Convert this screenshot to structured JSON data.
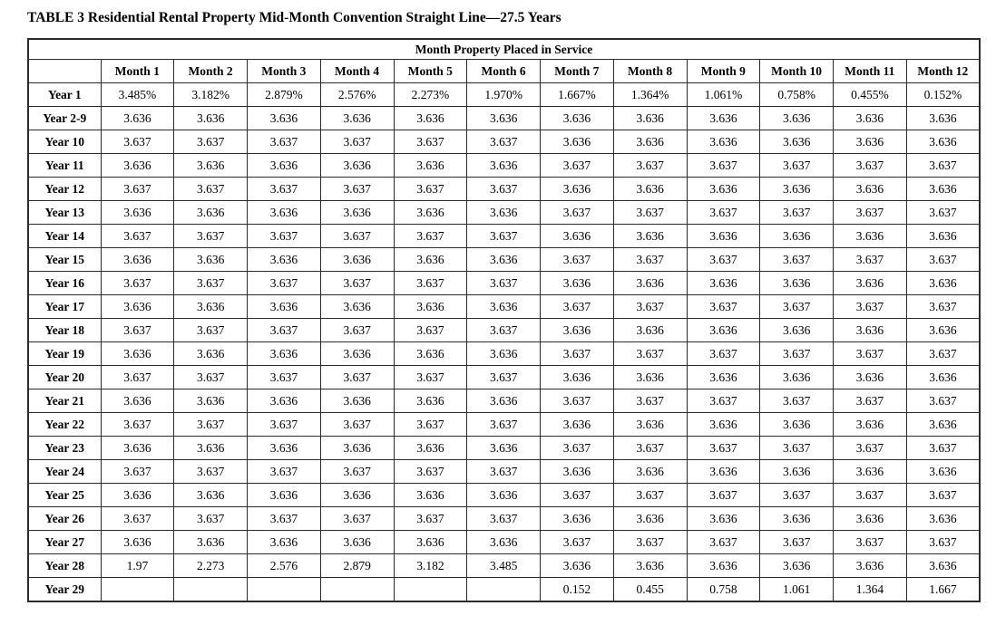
{
  "title": "TABLE 3 Residential Rental Property Mid-Month Convention Straight Line—27.5 Years",
  "table": {
    "span_header": "Month Property Placed in Service",
    "corner_label": "",
    "columns": [
      "Month 1",
      "Month 2",
      "Month 3",
      "Month 4",
      "Month 5",
      "Month 6",
      "Month 7",
      "Month 8",
      "Month 9",
      "Month 10",
      "Month 11",
      "Month 12"
    ],
    "rows": [
      {
        "label": "Year 1",
        "values": [
          "3.485%",
          "3.182%",
          "2.879%",
          "2.576%",
          "2.273%",
          "1.970%",
          "1.667%",
          "1.364%",
          "1.061%",
          "0.758%",
          "0.455%",
          "0.152%"
        ]
      },
      {
        "label": "Year 2-9",
        "values": [
          "3.636",
          "3.636",
          "3.636",
          "3.636",
          "3.636",
          "3.636",
          "3.636",
          "3.636",
          "3.636",
          "3.636",
          "3.636",
          "3.636"
        ]
      },
      {
        "label": "Year 10",
        "values": [
          "3.637",
          "3.637",
          "3.637",
          "3.637",
          "3.637",
          "3.637",
          "3.636",
          "3.636",
          "3.636",
          "3.636",
          "3.636",
          "3.636"
        ]
      },
      {
        "label": "Year 11",
        "values": [
          "3.636",
          "3.636",
          "3.636",
          "3.636",
          "3.636",
          "3.636",
          "3.637",
          "3.637",
          "3.637",
          "3.637",
          "3.637",
          "3.637"
        ]
      },
      {
        "label": "Year 12",
        "values": [
          "3.637",
          "3.637",
          "3.637",
          "3.637",
          "3.637",
          "3.637",
          "3.636",
          "3.636",
          "3.636",
          "3.636",
          "3.636",
          "3.636"
        ]
      },
      {
        "label": "Year 13",
        "values": [
          "3.636",
          "3.636",
          "3.636",
          "3.636",
          "3.636",
          "3.636",
          "3.637",
          "3.637",
          "3.637",
          "3.637",
          "3.637",
          "3.637"
        ]
      },
      {
        "label": "Year 14",
        "values": [
          "3.637",
          "3.637",
          "3.637",
          "3.637",
          "3.637",
          "3.637",
          "3.636",
          "3.636",
          "3.636",
          "3.636",
          "3.636",
          "3.636"
        ]
      },
      {
        "label": "Year 15",
        "values": [
          "3.636",
          "3.636",
          "3.636",
          "3.636",
          "3.636",
          "3.636",
          "3.637",
          "3.637",
          "3.637",
          "3.637",
          "3.637",
          "3.637"
        ]
      },
      {
        "label": "Year 16",
        "values": [
          "3.637",
          "3.637",
          "3.637",
          "3.637",
          "3.637",
          "3.637",
          "3.636",
          "3.636",
          "3.636",
          "3.636",
          "3.636",
          "3.636"
        ]
      },
      {
        "label": "Year 17",
        "values": [
          "3.636",
          "3.636",
          "3.636",
          "3.636",
          "3.636",
          "3.636",
          "3.637",
          "3.637",
          "3.637",
          "3.637",
          "3.637",
          "3.637"
        ]
      },
      {
        "label": "Year 18",
        "values": [
          "3.637",
          "3.637",
          "3.637",
          "3.637",
          "3.637",
          "3.637",
          "3.636",
          "3.636",
          "3.636",
          "3.636",
          "3.636",
          "3.636"
        ]
      },
      {
        "label": "Year 19",
        "values": [
          "3.636",
          "3.636",
          "3.636",
          "3.636",
          "3.636",
          "3.636",
          "3.637",
          "3.637",
          "3.637",
          "3.637",
          "3.637",
          "3.637"
        ]
      },
      {
        "label": "Year 20",
        "values": [
          "3.637",
          "3.637",
          "3.637",
          "3.637",
          "3.637",
          "3.637",
          "3.636",
          "3.636",
          "3.636",
          "3.636",
          "3.636",
          "3.636"
        ]
      },
      {
        "label": "Year 21",
        "values": [
          "3.636",
          "3.636",
          "3.636",
          "3.636",
          "3.636",
          "3.636",
          "3.637",
          "3.637",
          "3.637",
          "3.637",
          "3.637",
          "3.637"
        ]
      },
      {
        "label": "Year 22",
        "values": [
          "3.637",
          "3.637",
          "3.637",
          "3.637",
          "3.637",
          "3.637",
          "3.636",
          "3.636",
          "3.636",
          "3.636",
          "3.636",
          "3.636"
        ]
      },
      {
        "label": "Year 23",
        "values": [
          "3.636",
          "3.636",
          "3.636",
          "3.636",
          "3.636",
          "3.636",
          "3.637",
          "3.637",
          "3.637",
          "3.637",
          "3.637",
          "3.637"
        ]
      },
      {
        "label": "Year 24",
        "values": [
          "3.637",
          "3.637",
          "3.637",
          "3.637",
          "3.637",
          "3.637",
          "3.636",
          "3.636",
          "3.636",
          "3.636",
          "3.636",
          "3.636"
        ]
      },
      {
        "label": "Year 25",
        "values": [
          "3.636",
          "3.636",
          "3.636",
          "3.636",
          "3.636",
          "3.636",
          "3.637",
          "3.637",
          "3.637",
          "3.637",
          "3.637",
          "3.637"
        ]
      },
      {
        "label": "Year 26",
        "values": [
          "3.637",
          "3.637",
          "3.637",
          "3.637",
          "3.637",
          "3.637",
          "3.636",
          "3.636",
          "3.636",
          "3.636",
          "3.636",
          "3.636"
        ]
      },
      {
        "label": "Year 27",
        "values": [
          "3.636",
          "3.636",
          "3.636",
          "3.636",
          "3.636",
          "3.636",
          "3.637",
          "3.637",
          "3.637",
          "3.637",
          "3.637",
          "3.637"
        ]
      },
      {
        "label": "Year 28",
        "values": [
          "1.97",
          "2.273",
          "2.576",
          "2.879",
          "3.182",
          "3.485",
          "3.636",
          "3.636",
          "3.636",
          "3.636",
          "3.636",
          "3.636"
        ]
      },
      {
        "label": "Year 29",
        "values": [
          "",
          "",
          "",
          "",
          "",
          "",
          "0.152",
          "0.455",
          "0.758",
          "1.061",
          "1.364",
          "1.667"
        ]
      }
    ]
  }
}
